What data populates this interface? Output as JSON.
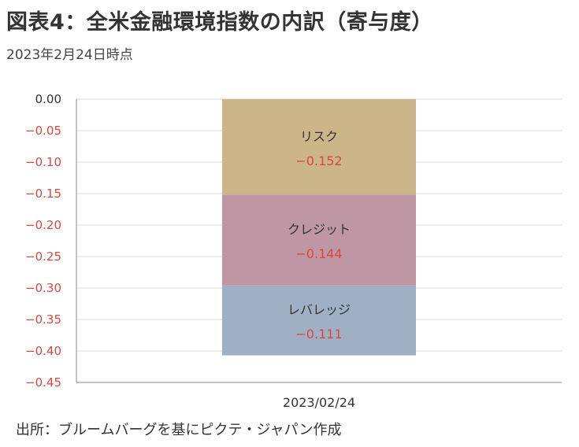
{
  "header": {
    "title": "図表4：全米金融環境指数の内訳（寄与度）",
    "subtitle": "2023年2月24日時点"
  },
  "footer": {
    "source": "出所：ブルームバーグを基にピクテ・ジャパン作成"
  },
  "colors": {
    "risk": "#cdb58a",
    "credit": "#bf96a4",
    "leverage": "#9fb0c4",
    "negative_text": "#d9483b",
    "zero_text": "#333333",
    "grid": "#d9d9d9",
    "axis": "#888888"
  },
  "chart_data": {
    "type": "bar",
    "stacked": true,
    "categories": [
      "2023/02/24"
    ],
    "series": [
      {
        "name": "リスク",
        "value_label": "-0.152",
        "values": [
          -0.152
        ],
        "color": "#cdb58a"
      },
      {
        "name": "クレジット",
        "value_label": "-0.144",
        "values": [
          -0.144
        ],
        "color": "#bf96a4"
      },
      {
        "name": "レバレッジ",
        "value_label": "-0.111",
        "values": [
          -0.111
        ],
        "color": "#9fb0c4"
      }
    ],
    "yticks": [
      "0.00",
      "-0.05",
      "-0.10",
      "-0.15",
      "-0.20",
      "-0.25",
      "-0.30",
      "-0.35",
      "-0.40",
      "-0.45"
    ],
    "ylim": [
      -0.45,
      0
    ],
    "grid": true,
    "title": "",
    "xlabel": "",
    "ylabel": ""
  }
}
